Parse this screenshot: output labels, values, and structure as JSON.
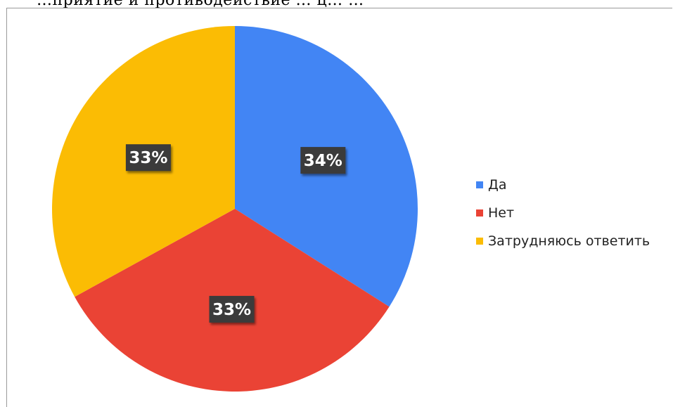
{
  "header_text": "…приятие и противодействие … ц… …",
  "chart_data": {
    "type": "pie",
    "title": "",
    "categories": [
      "Да",
      "Нет",
      "Затрудняюсь ответить"
    ],
    "values": [
      34,
      33,
      33
    ],
    "data_labels": [
      "34%",
      "33%",
      "33%"
    ],
    "colors": [
      "#4285F4",
      "#EA4335",
      "#FBBC04"
    ],
    "legend_position": "right",
    "label_style": "dark boxes with white text"
  }
}
